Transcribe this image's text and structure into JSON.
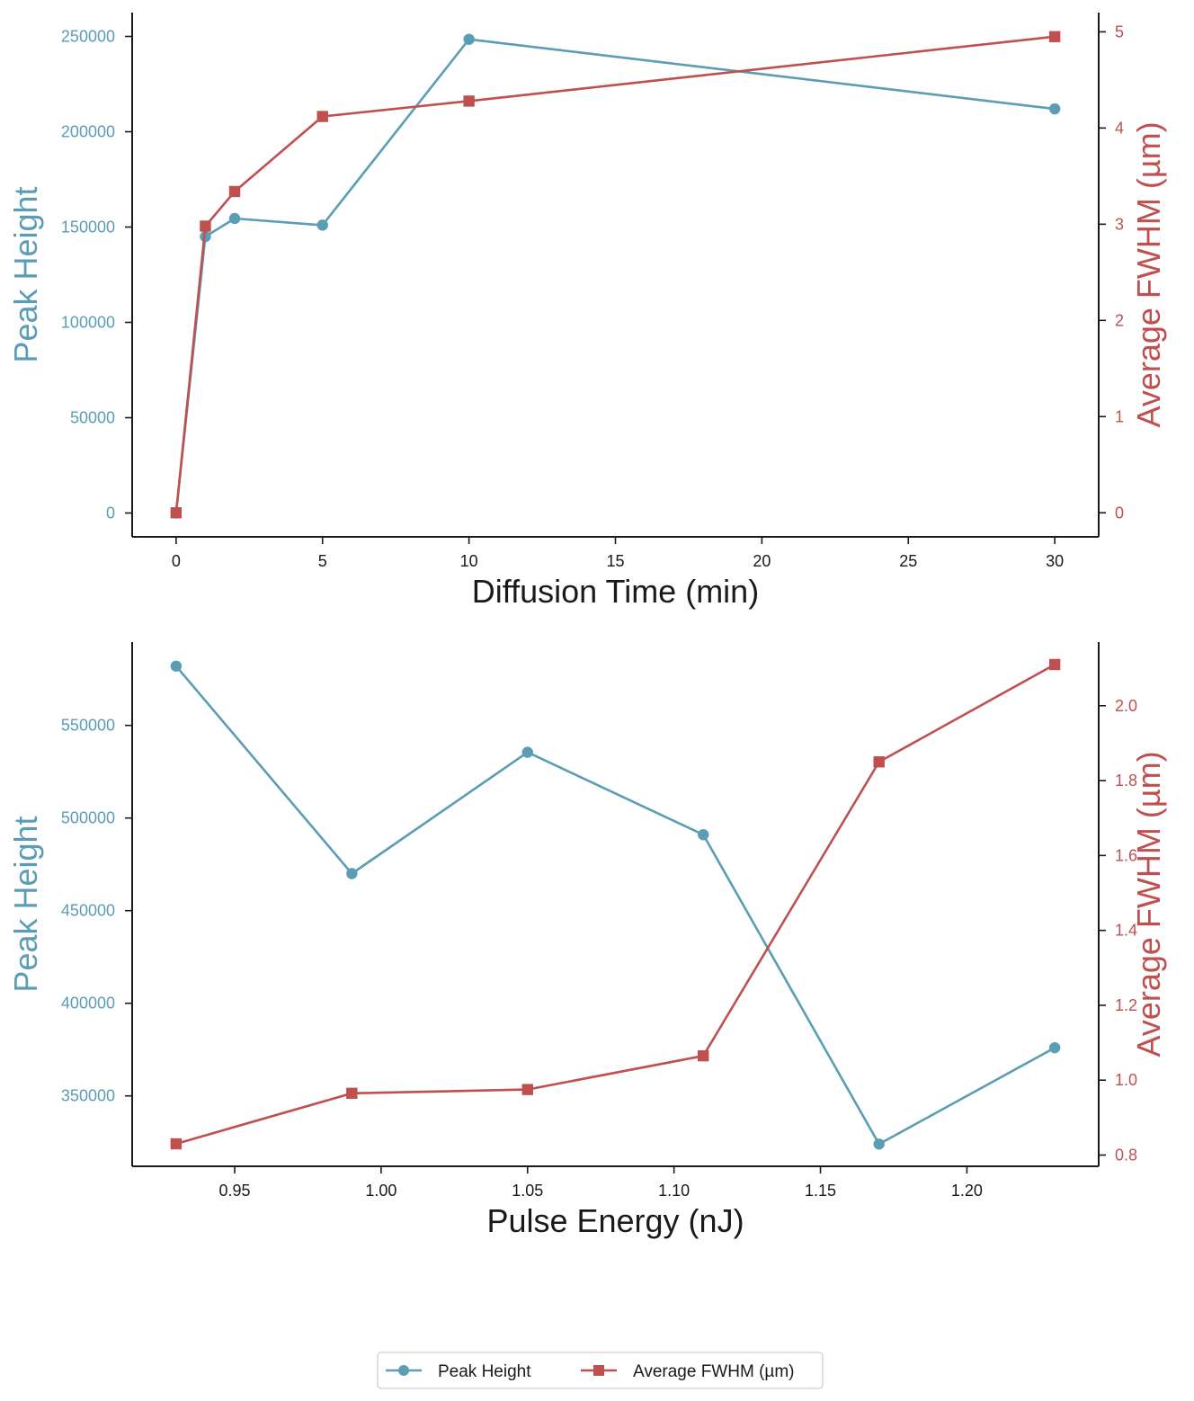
{
  "colors": {
    "peak": "#5a9db5",
    "fwhm": "#c0504f",
    "axis": "#1a1a1a",
    "text": "#1a1a1a",
    "legend_border": "#cccccc"
  },
  "legend": {
    "entries": [
      {
        "label": "Peak Height",
        "marker": "circle",
        "series": "peak"
      },
      {
        "label": "Average FWHM (µm)",
        "marker": "square",
        "series": "fwhm"
      }
    ],
    "placement": "bottom-center"
  },
  "chart_data": [
    {
      "type": "line",
      "xlabel": "Diffusion Time (min)",
      "ylabel_left": "Peak Height",
      "ylabel_right": "Average FWHM (µm)",
      "x": [
        0,
        1,
        2,
        5,
        10,
        30
      ],
      "xticks": [
        0,
        5,
        10,
        15,
        20,
        25,
        30
      ],
      "xtick_labels": [
        "0",
        "5",
        "10",
        "15",
        "20",
        "25",
        "30"
      ],
      "xlim": [
        -1.5,
        31.5
      ],
      "ylim_left": [
        -12500,
        262500
      ],
      "ylim_right": [
        -0.25,
        5.2
      ],
      "yticks_left": [
        0,
        50000,
        100000,
        150000,
        200000,
        250000
      ],
      "ytick_labels_left": [
        "0",
        "50000",
        "100000",
        "150000",
        "200000",
        "250000"
      ],
      "yticks_right": [
        0,
        1,
        2,
        3,
        4,
        5
      ],
      "ytick_labels_right": [
        "0",
        "1",
        "2",
        "3",
        "4",
        "5"
      ],
      "series": [
        {
          "name": "Peak Height",
          "axis": "left",
          "marker": "circle",
          "values": [
            0,
            145000,
            154500,
            151000,
            248500,
            212000
          ]
        },
        {
          "name": "Average FWHM (µm)",
          "axis": "right",
          "marker": "square",
          "values": [
            0,
            2.98,
            3.34,
            4.12,
            4.28,
            4.95
          ]
        }
      ]
    },
    {
      "type": "line",
      "xlabel": "Pulse Energy (nJ)",
      "ylabel_left": "Peak Height",
      "ylabel_right": "Average FWHM (µm)",
      "x": [
        0.93,
        0.99,
        1.05,
        1.11,
        1.17,
        1.23
      ],
      "xticks": [
        0.95,
        1.0,
        1.05,
        1.1,
        1.15,
        1.2
      ],
      "xtick_labels": [
        "0.95",
        "1.00",
        "1.05",
        "1.10",
        "1.15",
        "1.20"
      ],
      "xlim": [
        0.915,
        1.245
      ],
      "ylim_left": [
        312000,
        595000
      ],
      "ylim_right": [
        0.77,
        2.17
      ],
      "yticks_left": [
        350000,
        400000,
        450000,
        500000,
        550000
      ],
      "ytick_labels_left": [
        "350000",
        "400000",
        "450000",
        "500000",
        "550000"
      ],
      "yticks_right": [
        0.8,
        1.0,
        1.2,
        1.4,
        1.6,
        1.8,
        2.0
      ],
      "ytick_labels_right": [
        "0.8",
        "1.0",
        "1.2",
        "1.4",
        "1.6",
        "1.8",
        "2.0"
      ],
      "series": [
        {
          "name": "Peak Height",
          "axis": "left",
          "marker": "circle",
          "values": [
            582000,
            470000,
            535500,
            491000,
            324000,
            376000
          ]
        },
        {
          "name": "Average FWHM (µm)",
          "axis": "right",
          "marker": "square",
          "values": [
            0.83,
            0.965,
            0.975,
            1.065,
            1.85,
            2.11
          ]
        }
      ]
    }
  ]
}
